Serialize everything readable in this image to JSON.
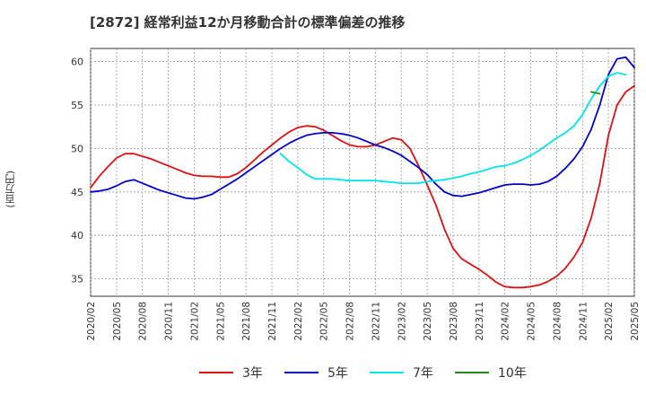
{
  "title": "[2872]  経常利益12か月移動合計の標準偏差の推移",
  "chart_data": {
    "type": "line",
    "ylabel": "(百万円)",
    "ylim": [
      33,
      61.5
    ],
    "yticks": [
      35,
      40,
      45,
      50,
      55,
      60
    ],
    "xlim": [
      "2020-02",
      "2025-05"
    ],
    "xticks": [
      "2020/02",
      "2020/05",
      "2020/08",
      "2020/11",
      "2021/02",
      "2021/05",
      "2021/08",
      "2021/11",
      "2022/02",
      "2022/05",
      "2022/08",
      "2022/11",
      "2023/02",
      "2023/05",
      "2023/08",
      "2023/11",
      "2024/02",
      "2024/05",
      "2024/08",
      "2024/11",
      "2025/02",
      "2025/05"
    ],
    "grid": true,
    "legend_position": "bottom",
    "series": [
      {
        "name": "3年",
        "color": "#dd1111",
        "start": "2020-02",
        "values": [
          45.5,
          46.8,
          47.9,
          48.9,
          49.4,
          49.4,
          49.1,
          48.8,
          48.4,
          48.0,
          47.6,
          47.2,
          46.9,
          46.8,
          46.8,
          46.7,
          46.7,
          47.1,
          47.8,
          48.7,
          49.6,
          50.4,
          51.2,
          51.9,
          52.4,
          52.6,
          52.5,
          52.1,
          51.5,
          50.9,
          50.4,
          50.2,
          50.2,
          50.4,
          50.8,
          51.2,
          51.0,
          50.0,
          48.0,
          45.8,
          43.5,
          40.7,
          38.5,
          37.3,
          36.7,
          36.1,
          35.4,
          34.6,
          34.1,
          34.0,
          34.0,
          34.1,
          34.3,
          34.7,
          35.3,
          36.2,
          37.5,
          39.2,
          42.0,
          46.0,
          51.5,
          55.0,
          56.5,
          57.2
        ]
      },
      {
        "name": "5年",
        "color": "#0000cc",
        "start": "2020-02",
        "values": [
          45.0,
          45.1,
          45.3,
          45.7,
          46.2,
          46.4,
          46.0,
          45.6,
          45.2,
          44.9,
          44.6,
          44.3,
          44.2,
          44.4,
          44.7,
          45.3,
          45.9,
          46.5,
          47.2,
          47.9,
          48.6,
          49.3,
          50.0,
          50.6,
          51.1,
          51.5,
          51.7,
          51.8,
          51.8,
          51.7,
          51.5,
          51.2,
          50.8,
          50.4,
          50.1,
          49.7,
          49.2,
          48.5,
          47.8,
          47.0,
          45.9,
          45.0,
          44.6,
          44.5,
          44.7,
          44.9,
          45.2,
          45.5,
          45.8,
          45.9,
          45.9,
          45.8,
          45.9,
          46.2,
          46.8,
          47.7,
          48.8,
          50.2,
          52.2,
          55.0,
          58.5,
          60.3,
          60.5,
          59.3
        ]
      },
      {
        "name": "7年",
        "color": "#00e5ee",
        "start": "2021-12",
        "values": [
          49.4,
          48.5,
          47.8,
          47.0,
          46.5,
          46.5,
          46.5,
          46.4,
          46.3,
          46.3,
          46.3,
          46.3,
          46.2,
          46.1,
          46.0,
          46.0,
          46.0,
          46.2,
          46.3,
          46.4,
          46.6,
          46.8,
          47.1,
          47.3,
          47.6,
          47.9,
          48.0,
          48.3,
          48.7,
          49.2,
          49.8,
          50.5,
          51.2,
          51.8,
          52.6,
          53.9,
          55.7,
          57.2,
          58.3,
          58.7,
          58.5
        ]
      },
      {
        "name": "10年",
        "color": "#228822",
        "start": "2024-12",
        "values": [
          56.5,
          56.3
        ]
      }
    ]
  }
}
